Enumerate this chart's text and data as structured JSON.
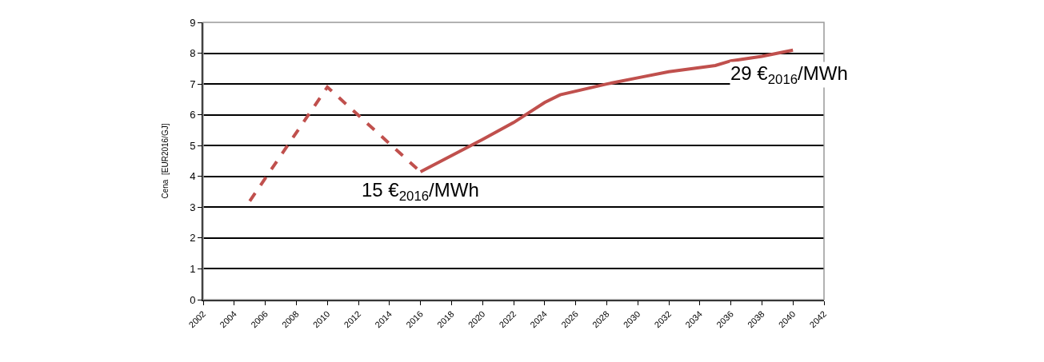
{
  "chart_data": {
    "type": "line",
    "ylabel": "Cena  [EUR2016/GJ]",
    "xlim": [
      2002,
      2042
    ],
    "xticks": [
      2002,
      2004,
      2006,
      2008,
      2010,
      2012,
      2014,
      2016,
      2018,
      2020,
      2022,
      2024,
      2026,
      2028,
      2030,
      2032,
      2034,
      2036,
      2038,
      2040,
      2042
    ],
    "ylim": [
      0,
      9
    ],
    "yticks": [
      0,
      1,
      2,
      3,
      4,
      5,
      6,
      7,
      8,
      9
    ],
    "grid": "y",
    "marker": "none",
    "series": [
      {
        "color": "#c0504d",
        "line_style": "dashed",
        "x": [
          2005,
          2010,
          2016
        ],
        "values": [
          3.2,
          6.9,
          4.15
        ]
      },
      {
        "color": "#c0504d",
        "line_style": "solid",
        "x": [
          2016,
          2020,
          2022,
          2024,
          2025,
          2028,
          2030,
          2032,
          2035,
          2036,
          2038,
          2040
        ],
        "values": [
          4.15,
          5.2,
          5.75,
          6.4,
          6.65,
          7.0,
          7.2,
          7.4,
          7.6,
          7.75,
          7.9,
          8.1
        ]
      }
    ],
    "annotations": [
      {
        "text": "15 €$_{2016}$/MWh",
        "x": 2016,
        "y": 4.15
      },
      {
        "text": "29 €$_{2016}$/MWh",
        "x": 2040,
        "y": 8.1
      }
    ]
  }
}
